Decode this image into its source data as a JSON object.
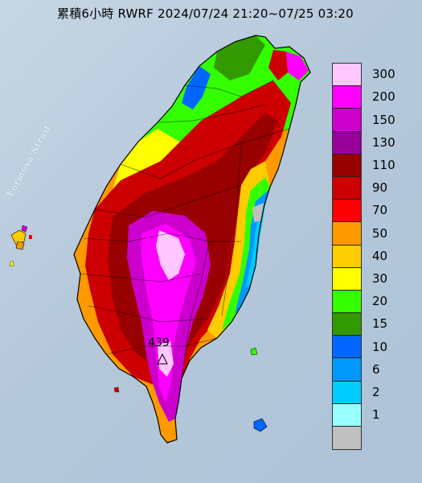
{
  "title": "累積6小時 RWRF 2024/07/24 21:20~07/25 03:20",
  "strait_label": "Formosa Strait",
  "peak_value": "439",
  "legend": [
    {
      "label": "300",
      "color": "#ffc6ff"
    },
    {
      "label": "200",
      "color": "#ff00ff"
    },
    {
      "label": "150",
      "color": "#cc00cc"
    },
    {
      "label": "130",
      "color": "#990099"
    },
    {
      "label": "110",
      "color": "#990000"
    },
    {
      "label": "90",
      "color": "#cc0000"
    },
    {
      "label": "70",
      "color": "#ff0000"
    },
    {
      "label": "50",
      "color": "#ff9900"
    },
    {
      "label": "40",
      "color": "#ffcc00"
    },
    {
      "label": "30",
      "color": "#ffff00"
    },
    {
      "label": "20",
      "color": "#33ff00"
    },
    {
      "label": "15",
      "color": "#339900"
    },
    {
      "label": "10",
      "color": "#0066ff"
    },
    {
      "label": "6",
      "color": "#0099ff"
    },
    {
      "label": "2",
      "color": "#00ccff"
    },
    {
      "label": "1",
      "color": "#99ffff"
    },
    {
      "label": "",
      "color": "#c0c0c0"
    }
  ]
}
